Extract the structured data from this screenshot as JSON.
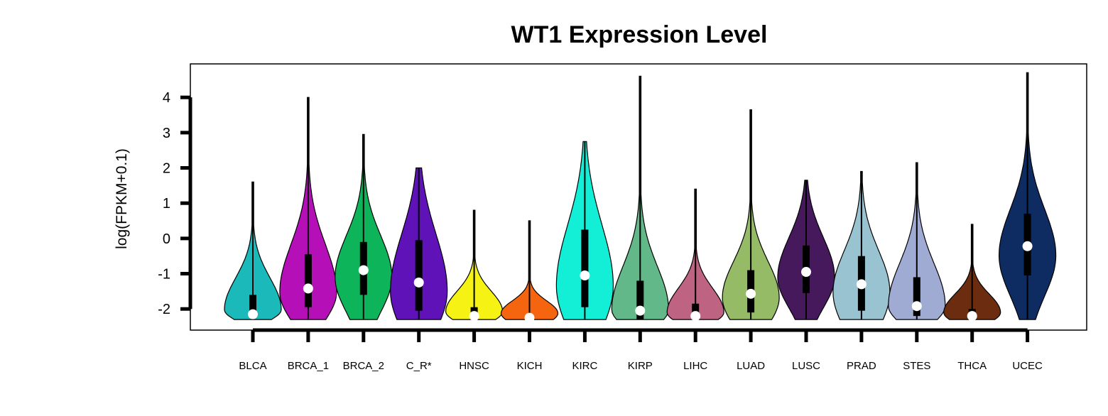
{
  "chart_data": {
    "type": "violin",
    "title": "WT1 Expression Level",
    "xlabel": "",
    "ylabel": "log(FPKM+0.1)",
    "ylim": [
      -2.6,
      4.95
    ],
    "yticks": [
      -2,
      -1,
      0,
      1,
      2,
      3,
      4
    ],
    "grid": false,
    "legend": "none",
    "categories": [
      "BLCA",
      "BRCA_1",
      "BRCA_2",
      "C_R*",
      "HNSC",
      "KICH",
      "KIRC",
      "KIRP",
      "LIHC",
      "LUAD",
      "LUSC",
      "PRAD",
      "STES",
      "THCA",
      "UCEC"
    ],
    "colors": [
      "#1bb9b9",
      "#b50fb8",
      "#0eb45a",
      "#5e12b8",
      "#f5f214",
      "#f5640f",
      "#13efd7",
      "#62b888",
      "#be6382",
      "#95bb66",
      "#46195d",
      "#9ac3d2",
      "#9fabd3",
      "#6b2c0f",
      "#0e2c62"
    ],
    "series": [
      {
        "name": "BLCA",
        "min": -2.3,
        "max": 1.6,
        "q1": -2.2,
        "median": -2.15,
        "q3": -1.6
      },
      {
        "name": "BRCA_1",
        "min": -2.3,
        "max": 4.0,
        "q1": -1.95,
        "median": -1.42,
        "q3": -0.45
      },
      {
        "name": "BRCA_2",
        "min": -2.3,
        "max": 2.95,
        "q1": -1.6,
        "median": -0.9,
        "q3": -0.1
      },
      {
        "name": "C_R*",
        "min": -2.3,
        "max": 2.0,
        "q1": -2.05,
        "median": -1.25,
        "q3": -0.05
      },
      {
        "name": "HNSC",
        "min": -2.3,
        "max": 0.8,
        "q1": -2.25,
        "median": -2.2,
        "q3": -1.95
      },
      {
        "name": "KICH",
        "min": -2.3,
        "max": 0.5,
        "q1": -2.3,
        "median": -2.25,
        "q3": -2.2
      },
      {
        "name": "KIRC",
        "min": -2.3,
        "max": 2.75,
        "q1": -1.95,
        "median": -1.05,
        "q3": 0.25
      },
      {
        "name": "KIRP",
        "min": -2.3,
        "max": 4.6,
        "q1": -2.3,
        "median": -2.05,
        "q3": -1.2
      },
      {
        "name": "LIHC",
        "min": -2.3,
        "max": 1.4,
        "q1": -2.3,
        "median": -2.2,
        "q3": -1.85
      },
      {
        "name": "LUAD",
        "min": -2.3,
        "max": 3.65,
        "q1": -2.1,
        "median": -1.57,
        "q3": -0.9
      },
      {
        "name": "LUSC",
        "min": -2.3,
        "max": 1.65,
        "q1": -1.55,
        "median": -0.95,
        "q3": -0.2
      },
      {
        "name": "PRAD",
        "min": -2.3,
        "max": 1.9,
        "q1": -2.05,
        "median": -1.3,
        "q3": -0.5
      },
      {
        "name": "STES",
        "min": -2.3,
        "max": 2.15,
        "q1": -2.2,
        "median": -1.92,
        "q3": -1.1
      },
      {
        "name": "THCA",
        "min": -2.3,
        "max": 0.4,
        "q1": -2.3,
        "median": -2.2,
        "q3": -2.0
      },
      {
        "name": "UCEC",
        "min": -2.3,
        "max": 4.7,
        "q1": -1.05,
        "median": -0.22,
        "q3": 0.7
      }
    ]
  }
}
